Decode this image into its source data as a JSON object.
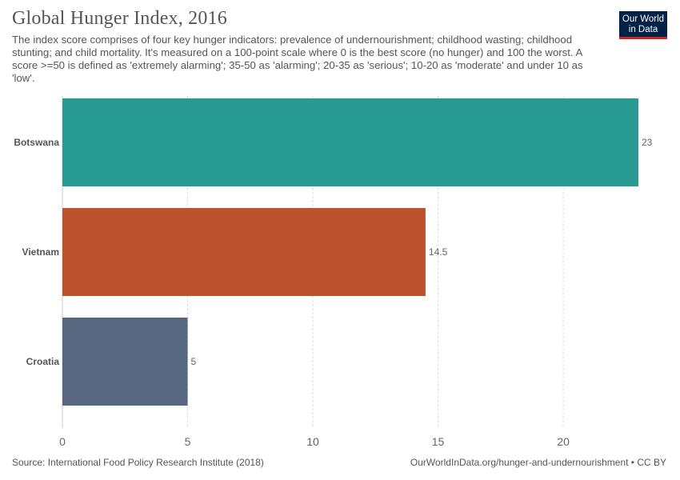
{
  "header": {
    "title": "Global Hunger Index, 2016",
    "subtitle": "The index score comprises of four key hunger indicators: prevalence of undernourishment; childhood wasting; childhood stunting; and child mortality. It's measured on a 100-point scale where 0 is the best score (no hunger) and 100 the worst. A score >=50 is defined as 'extremely alarming'; 35-50 as 'alarming'; 20-35 as 'serious'; 10-20 as 'moderate' and under 10 as 'low'."
  },
  "logo": {
    "line1": "Our World",
    "line2": "in Data",
    "bg_color": "#002147",
    "accent_color": "#ce261e"
  },
  "footer": {
    "source": "Source: International Food Policy Research Institute (2018)",
    "url": "OurWorldInData.org/hunger-and-undernourishment • CC BY"
  },
  "chart_data": {
    "type": "bar",
    "orientation": "horizontal",
    "categories": [
      "Botswana",
      "Vietnam",
      "Croatia"
    ],
    "values": [
      23,
      14.5,
      5
    ],
    "value_labels": [
      "23",
      "14.5",
      "5"
    ],
    "colors": [
      "#279a91",
      "#bd532e",
      "#576780"
    ],
    "xlim": [
      0,
      23
    ],
    "xticks": [
      0,
      5,
      10,
      15,
      20
    ],
    "grid": "vertical-dashed",
    "title": "Global Hunger Index, 2016"
  }
}
